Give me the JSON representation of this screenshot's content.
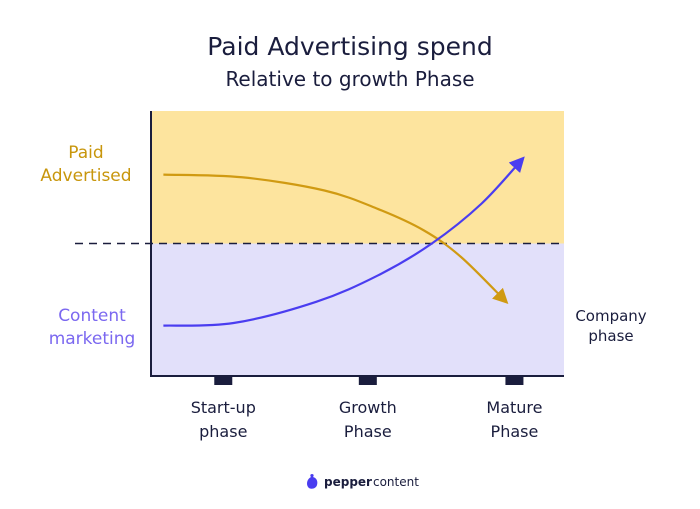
{
  "header": {
    "title": "Paid Advertising spend",
    "subtitle": "Relative to growth Phase"
  },
  "brand": {
    "name_bold": "pepper",
    "name_light": "content"
  },
  "chart_data": {
    "type": "line",
    "title": "Paid Advertising spend",
    "subtitle": "Relative to growth Phase",
    "xlabel": "Company phase",
    "ylabel": "",
    "categories": [
      "Start-up phase",
      "Growth Phase",
      "Mature Phase"
    ],
    "category_lines": [
      [
        "Start-up",
        "phase"
      ],
      [
        "Growth",
        "Phase"
      ],
      [
        "Mature",
        "Phase"
      ]
    ],
    "xlabel_lines": [
      "Company",
      "phase"
    ],
    "xlim": [
      0,
      1
    ],
    "ylim": [
      0,
      1
    ],
    "threshold": 0.5,
    "regions": [
      {
        "name": "Paid Advertised",
        "lines": [
          "Paid",
          "Advertised"
        ],
        "color": "#fde49e",
        "label_color": "#c8960c",
        "range": [
          0.5,
          1
        ]
      },
      {
        "name": "Content marketing",
        "lines": [
          "Content",
          "marketing"
        ],
        "color": "#e2e0fa",
        "label_color": "#7b68f0",
        "range": [
          0,
          0.5
        ]
      }
    ],
    "series": [
      {
        "name": "Paid Advertised",
        "color": "#d09a12",
        "x": [
          0.03,
          0.22,
          0.42,
          0.55,
          0.66,
          0.75,
          0.86
        ],
        "y": [
          0.76,
          0.75,
          0.7,
          0.63,
          0.55,
          0.45,
          0.28
        ]
      },
      {
        "name": "Content marketing",
        "color": "#4a3df0",
        "x": [
          0.03,
          0.2,
          0.4,
          0.55,
          0.68,
          0.8,
          0.9
        ],
        "y": [
          0.19,
          0.2,
          0.28,
          0.38,
          0.5,
          0.65,
          0.82
        ]
      }
    ],
    "grid": false,
    "legend": "left"
  }
}
